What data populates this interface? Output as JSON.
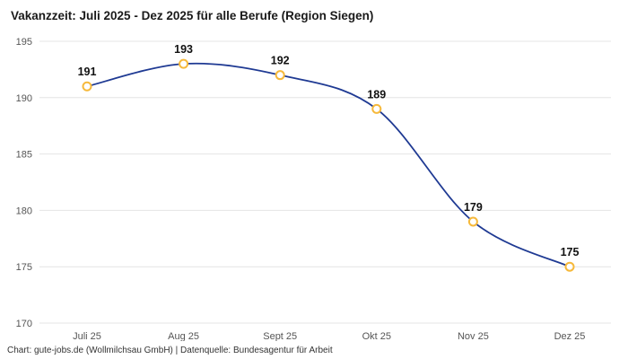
{
  "title": "Vakanzzeit: Juli 2025 - Dez 2025 für alle Berufe (Region Siegen)",
  "footer": "Chart: gute-jobs.de (Wollmilchsau GmbH) | Datenquelle: Bundesagentur für Arbeit",
  "colors": {
    "line": "#1f3a93",
    "marker_stroke": "#f6b93b",
    "marker_fill": "#ffffff",
    "grid": "#e4e4e4",
    "axis_text": "#555555",
    "value_label_text": "#111111",
    "title_text": "#1a1a1a"
  },
  "chart_data": {
    "type": "line",
    "categories": [
      "Juli 25",
      "Aug 25",
      "Sept 25",
      "Okt 25",
      "Nov 25",
      "Dez 25"
    ],
    "values": [
      191,
      193,
      192,
      189,
      179,
      175
    ],
    "title": "Vakanzzeit: Juli 2025 - Dez 2025 für alle Berufe (Region Siegen)",
    "xlabel": "",
    "ylabel": "",
    "ylim": [
      170,
      195
    ],
    "yticks": [
      170,
      175,
      180,
      185,
      190,
      195
    ],
    "grid": true,
    "legend_position": "none",
    "data_labels": true,
    "smooth": true
  }
}
